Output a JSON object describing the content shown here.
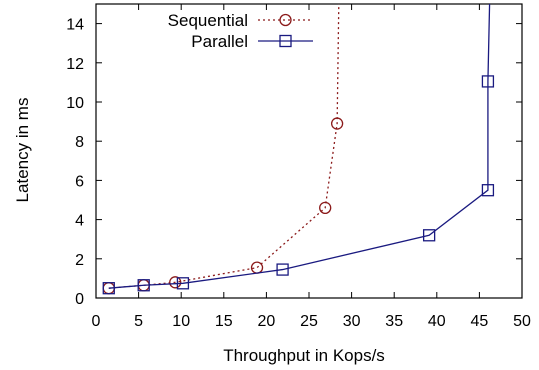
{
  "chart_data": {
    "type": "line",
    "title": "",
    "xlabel": "Throughput in Kops/s",
    "ylabel": "Latency in ms",
    "xlim": [
      0,
      50
    ],
    "ylim": [
      0,
      15
    ],
    "xticks": [
      0,
      5,
      10,
      15,
      20,
      25,
      30,
      35,
      40,
      45,
      50
    ],
    "yticks": [
      0,
      2,
      4,
      6,
      8,
      10,
      12,
      14
    ],
    "grid": false,
    "legend": "top-left",
    "series": [
      {
        "name": "Sequential",
        "color": "#8b1a1a",
        "line_style": "dotted",
        "marker": "circle",
        "x": [
          1.5,
          5.6,
          9.3,
          18.9,
          26.9,
          28.3
        ],
        "y": [
          0.5,
          0.65,
          0.8,
          1.55,
          4.6,
          8.9
        ],
        "extends_to": {
          "x": 28.5,
          "y": 15
        }
      },
      {
        "name": "Parallel",
        "color": "#1a1a80",
        "line_style": "solid",
        "marker": "square",
        "x": [
          1.5,
          5.6,
          10.2,
          21.9,
          39.1,
          46.0,
          46.0
        ],
        "y": [
          0.5,
          0.65,
          0.75,
          1.45,
          3.2,
          5.5,
          11.05
        ],
        "extends_to": {
          "x": 46.2,
          "y": 15
        }
      }
    ]
  }
}
